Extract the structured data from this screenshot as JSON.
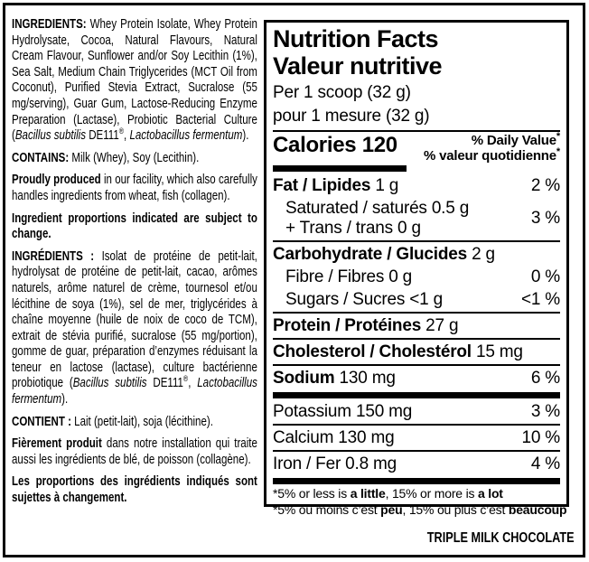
{
  "colors": {
    "ink": "#000000",
    "background": "#ffffff"
  },
  "flavor": "TRIPLE MILK CHOCOLATE",
  "ingredients_panel": {
    "paragraphs": [
      {
        "name": "ingredients-en",
        "runs": [
          {
            "t": "INGREDIENTS: ",
            "b": true
          },
          {
            "t": "Whey Protein Isolate, Whey Protein Hydrolysate, Cocoa, Natural Flavours, Natural Cream Flavour, Sunflower and/or Soy Lecithin (1%), Sea Salt, Medium Chain Triglycerides (MCT Oil from Coconut), Purified Stevia Extract, Sucralose (55 mg/serving), Guar Gum, Lactose-Reducing Enzyme Preparation (Lactase), Probiotic Bacterial Culture ("
          },
          {
            "t": "Bacillus subtilis",
            "i": true
          },
          {
            "t": " DE111"
          },
          {
            "t": "®",
            "sup": true
          },
          {
            "t": ", "
          },
          {
            "t": "Lactobacillus fermentum",
            "i": true
          },
          {
            "t": ")."
          }
        ]
      },
      {
        "name": "contains-en",
        "runs": [
          {
            "t": "CONTAINS: ",
            "b": true
          },
          {
            "t": "Milk (Whey), Soy (Lecithin)."
          }
        ]
      },
      {
        "name": "facility-en",
        "runs": [
          {
            "t": "Proudly produced ",
            "b": true
          },
          {
            "t": "in our facility, which also carefully handles ingredients from wheat, fish (collagen)."
          }
        ]
      },
      {
        "name": "proportions-en",
        "runs": [
          {
            "t": "Ingredient proportions indicated are subject to change.",
            "b": true
          }
        ]
      },
      {
        "name": "ingredients-fr",
        "runs": [
          {
            "t": "INGRÉDIENTS : ",
            "b": true
          },
          {
            "t": "Isolat de protéine de petit-lait, hydrolysat de protéine de petit-lait, cacao, arômes naturels, arôme naturel de crème, tournesol et/ou lécithine de soya (1%), sel de mer, triglycérides à chaîne moyenne (huile de noix de coco de TCM), extrait de stévia purifié, sucralose (55 mg/portion), gomme de guar, préparation d’enzymes réduisant la teneur en lactose (lactase), culture bactérienne probiotique ("
          },
          {
            "t": "Bacillus subtilis",
            "i": true
          },
          {
            "t": " DE111"
          },
          {
            "t": "®",
            "sup": true
          },
          {
            "t": ", "
          },
          {
            "t": "Lactobacillus fermentum",
            "i": true
          },
          {
            "t": ")."
          }
        ]
      },
      {
        "name": "contains-fr",
        "runs": [
          {
            "t": "CONTIENT : ",
            "b": true
          },
          {
            "t": "Lait (petit-lait), soja (lécithine)."
          }
        ]
      },
      {
        "name": "facility-fr",
        "runs": [
          {
            "t": "Fièrement produit ",
            "b": true
          },
          {
            "t": "dans notre installation qui traite aussi les ingrédients de blé, de poisson (collagène)."
          }
        ]
      },
      {
        "name": "proportions-fr",
        "runs": [
          {
            "t": "Les proportions des ingrédients indiqués sont sujettes à changement.",
            "b": true
          }
        ]
      }
    ]
  },
  "nutrition_panel": {
    "title_en": "Nutrition Facts",
    "title_fr": "Valeur nutritive",
    "serving_en": "Per 1 scoop (32 g)",
    "serving_fr": "pour 1 mesure (32 g)",
    "calories_label": "Calories",
    "calories_value": "120",
    "daily_value_header_en": "% Daily Value",
    "daily_value_header_fr": "% valeur quotidienne",
    "daily_value_asterisk": "*",
    "rows": [
      {
        "kind": "nutrient",
        "name": "fat",
        "lines": [
          [
            {
              "t": "Fat / Lipides",
              "b": true
            },
            {
              "t": " 1 g"
            }
          ]
        ],
        "value": "2 %"
      },
      {
        "kind": "nutrient",
        "name": "saturated-trans",
        "indent": true,
        "lines": [
          [
            {
              "t": "Saturated / saturés 0.5 g"
            }
          ],
          [
            {
              "t": "+ Trans / trans 0 g"
            }
          ]
        ],
        "value": "3 %"
      },
      {
        "kind": "sep-thin"
      },
      {
        "kind": "nutrient",
        "name": "carbohydrate",
        "lines": [
          [
            {
              "t": "Carbohydrate / Glucides",
              "b": true
            },
            {
              "t": " 2 g"
            }
          ]
        ],
        "value": ""
      },
      {
        "kind": "nutrient",
        "name": "fibre",
        "indent": true,
        "lines": [
          [
            {
              "t": "Fibre / Fibres 0 g"
            }
          ]
        ],
        "value": "0 %"
      },
      {
        "kind": "nutrient",
        "name": "sugars",
        "indent": true,
        "lines": [
          [
            {
              "t": "Sugars / Sucres <1 g"
            }
          ]
        ],
        "value": "<1 %"
      },
      {
        "kind": "sep-thin"
      },
      {
        "kind": "nutrient",
        "name": "protein",
        "lines": [
          [
            {
              "t": "Protein / Protéines",
              "b": true
            },
            {
              "t": " 27 g"
            }
          ]
        ],
        "value": ""
      },
      {
        "kind": "sep-thin"
      },
      {
        "kind": "nutrient",
        "name": "cholesterol",
        "lines": [
          [
            {
              "t": "Cholesterol / Cholestérol",
              "b": true
            },
            {
              "t": " 15 mg"
            }
          ]
        ],
        "value": ""
      },
      {
        "kind": "sep-thin"
      },
      {
        "kind": "nutrient",
        "name": "sodium",
        "lines": [
          [
            {
              "t": "Sodium",
              "b": true
            },
            {
              "t": " 130 mg"
            }
          ]
        ],
        "value": "6 %"
      },
      {
        "kind": "sep-thick"
      },
      {
        "kind": "nutrient",
        "name": "potassium",
        "lines": [
          [
            {
              "t": "Potassium 150 mg"
            }
          ]
        ],
        "value": "3 %"
      },
      {
        "kind": "sep-thin"
      },
      {
        "kind": "nutrient",
        "name": "calcium",
        "lines": [
          [
            {
              "t": "Calcium 130 mg"
            }
          ]
        ],
        "value": "10 %"
      },
      {
        "kind": "sep-thin"
      },
      {
        "kind": "nutrient",
        "name": "iron",
        "lines": [
          [
            {
              "t": "Iron / Fer 0.8 mg"
            }
          ]
        ],
        "value": "4 %"
      },
      {
        "kind": "sep-thick"
      }
    ],
    "footnote_en_runs": [
      {
        "t": "*5% or less is "
      },
      {
        "t": "a little",
        "b": true
      },
      {
        "t": ", 15% or more is "
      },
      {
        "t": "a lot",
        "b": true
      }
    ],
    "footnote_fr_runs": [
      {
        "t": "*5% ou moins c’est "
      },
      {
        "t": "peu",
        "b": true
      },
      {
        "t": ", 15% ou plus c’est "
      },
      {
        "t": "beaucoup",
        "b": true
      }
    ]
  }
}
